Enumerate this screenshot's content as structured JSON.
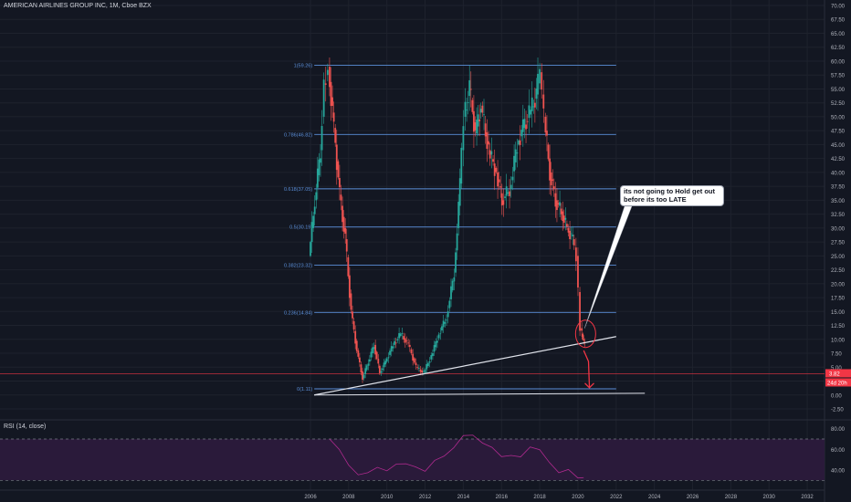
{
  "header": {
    "title": "AMERICAN AIRLINES GROUP INC, 1M, Cboe BZX"
  },
  "rsi": {
    "title": "RSI (14, close)"
  },
  "annotation": {
    "text": "its not going to Hold get out\n  before its too LATE"
  },
  "price_labels": {
    "current": "3.82",
    "countdown": "24d 20h"
  },
  "colors": {
    "background": "#131722",
    "up": "#26a69a",
    "down": "#ef5350",
    "fib": "#5b8fd9",
    "trend": "#e0e3eb",
    "rsi": "#b02a8f",
    "rsi_band": "#2a1a3a",
    "alert": "#f23645"
  },
  "chart_data": {
    "type": "candlestick",
    "title": "AMERICAN AIRLINES GROUP INC, 1M, Cboe BZX",
    "y_axis_ticks": [
      -2.5,
      0,
      2.5,
      5,
      7.5,
      10,
      12.5,
      15,
      17.5,
      20,
      22.5,
      25,
      27.5,
      30,
      32.5,
      35,
      37.5,
      40,
      42.5,
      45,
      47.5,
      50,
      52.5,
      55,
      57.5,
      60,
      62.5,
      65,
      67.5,
      70
    ],
    "ylim": [
      -2.5,
      70
    ],
    "x_axis_ticks": [
      "2006",
      "2008",
      "2010",
      "2012",
      "2014",
      "2016",
      "2018",
      "2020",
      "2022",
      "2024",
      "2026",
      "2028",
      "2030",
      "2032"
    ],
    "xlim": [
      2006,
      2033
    ],
    "price_path": [
      [
        2006.0,
        25
      ],
      [
        2006.3,
        35
      ],
      [
        2006.6,
        44
      ],
      [
        2006.8,
        56
      ],
      [
        2007.0,
        59
      ],
      [
        2007.3,
        48
      ],
      [
        2007.6,
        36
      ],
      [
        2007.9,
        28
      ],
      [
        2008.2,
        15
      ],
      [
        2008.5,
        8
      ],
      [
        2008.8,
        3
      ],
      [
        2009.1,
        6
      ],
      [
        2009.4,
        9
      ],
      [
        2009.7,
        4
      ],
      [
        2010.0,
        6
      ],
      [
        2010.4,
        9
      ],
      [
        2010.8,
        11
      ],
      [
        2011.2,
        9
      ],
      [
        2011.6,
        5
      ],
      [
        2012.0,
        4
      ],
      [
        2012.4,
        7
      ],
      [
        2012.8,
        11
      ],
      [
        2013.2,
        14
      ],
      [
        2013.6,
        22
      ],
      [
        2013.9,
        38
      ],
      [
        2014.1,
        50
      ],
      [
        2014.4,
        55
      ],
      [
        2014.7,
        47
      ],
      [
        2015.0,
        52
      ],
      [
        2015.4,
        44
      ],
      [
        2015.8,
        40
      ],
      [
        2016.1,
        35
      ],
      [
        2016.5,
        37
      ],
      [
        2016.9,
        45
      ],
      [
        2017.2,
        48
      ],
      [
        2017.6,
        51
      ],
      [
        2017.9,
        54
      ],
      [
        2018.1,
        58
      ],
      [
        2018.3,
        50
      ],
      [
        2018.6,
        40
      ],
      [
        2018.9,
        35
      ],
      [
        2019.2,
        33
      ],
      [
        2019.5,
        30
      ],
      [
        2019.8,
        28
      ],
      [
        2020.0,
        25
      ],
      [
        2020.2,
        12
      ],
      [
        2020.3,
        10
      ],
      [
        2020.4,
        9
      ]
    ],
    "fib_levels": [
      {
        "label": "1(59.26)",
        "value": 59.26
      },
      {
        "label": "0.786(46.82)",
        "value": 46.82
      },
      {
        "label": "0.618(37.05)",
        "value": 37.05
      },
      {
        "label": "0.5(30.19)",
        "value": 30.19
      },
      {
        "label": "0.382(23.32)",
        "value": 23.32
      },
      {
        "label": "0.236(14.84)",
        "value": 14.84
      },
      {
        "label": "0(1.11)",
        "value": 1.11
      }
    ],
    "current_price": 3.82,
    "trendline": {
      "from": [
        2006.2,
        0
      ],
      "to": [
        2022.0,
        10.5
      ]
    },
    "support_line": {
      "from": [
        2006.2,
        0
      ],
      "to": [
        2023.5,
        0.3
      ]
    },
    "arrow": {
      "from": [
        2020.3,
        8
      ],
      "to": [
        2020.6,
        1.3
      ]
    },
    "circle": {
      "center": [
        2020.4,
        11
      ],
      "r": 7
    },
    "rsi_panel": {
      "ticks": [
        40,
        60,
        80
      ],
      "bands": [
        30,
        70
      ],
      "ylim": [
        25,
        85
      ],
      "path": [
        [
          2007.0,
          70
        ],
        [
          2007.5,
          60
        ],
        [
          2008.0,
          45
        ],
        [
          2008.5,
          35
        ],
        [
          2009.0,
          38
        ],
        [
          2009.5,
          42
        ],
        [
          2010.0,
          40
        ],
        [
          2010.5,
          45
        ],
        [
          2011.0,
          47
        ],
        [
          2011.5,
          42
        ],
        [
          2012.0,
          40
        ],
        [
          2012.5,
          48
        ],
        [
          2013.0,
          55
        ],
        [
          2013.5,
          60
        ],
        [
          2014.0,
          75
        ],
        [
          2014.5,
          72
        ],
        [
          2015.0,
          68
        ],
        [
          2015.5,
          60
        ],
        [
          2016.0,
          55
        ],
        [
          2016.5,
          52
        ],
        [
          2017.0,
          55
        ],
        [
          2017.5,
          60
        ],
        [
          2018.0,
          62
        ],
        [
          2018.5,
          45
        ],
        [
          2019.0,
          40
        ],
        [
          2019.5,
          38
        ],
        [
          2020.0,
          35
        ],
        [
          2020.3,
          30
        ]
      ]
    }
  }
}
